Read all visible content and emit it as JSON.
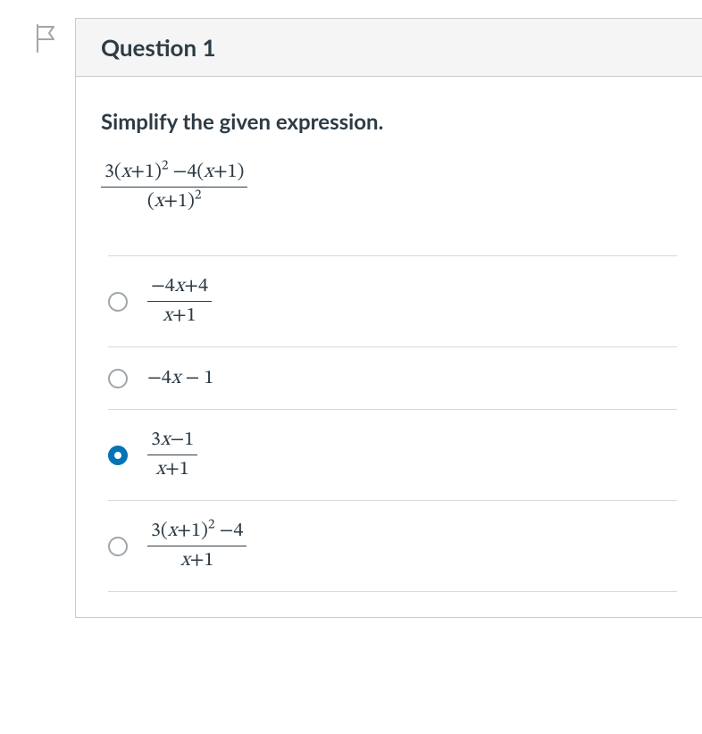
{
  "flag": {
    "stroke_color": "#9fa6ab",
    "stroke_width": 2
  },
  "panel": {
    "border_color": "#c7cdd1",
    "header_bg": "#f5f5f5"
  },
  "question": {
    "title": "Question 1",
    "prompt": "Simplify the given expression.",
    "expression": {
      "type": "fraction",
      "numerator_html": "3(<i>x</i>+1)<sup>2</sup> −4(<i>x</i>+1)",
      "denominator_html": "(<i>x</i>+1)<sup>2</sup>",
      "font_size": 22
    }
  },
  "options": [
    {
      "id": "opt-a",
      "selected": false,
      "type": "fraction",
      "numerator_html": "−4<i>x</i>+4",
      "denominator_html": "<i>x</i>+1"
    },
    {
      "id": "opt-b",
      "selected": false,
      "type": "inline",
      "html": "−4<i>x</i> − 1"
    },
    {
      "id": "opt-c",
      "selected": true,
      "type": "fraction",
      "numerator_html": "3<i>x</i>−1",
      "denominator_html": "<i>x</i>+1"
    },
    {
      "id": "opt-d",
      "selected": false,
      "type": "fraction",
      "numerator_html": "3(<i>x</i>+1)<sup>2</sup> −4",
      "denominator_html": "<i>x</i>+1"
    }
  ],
  "colors": {
    "text": "#2d3b45",
    "divider": "#d6dadd",
    "radio_border": "#9fa6ab",
    "radio_selected": "#0374b5"
  }
}
